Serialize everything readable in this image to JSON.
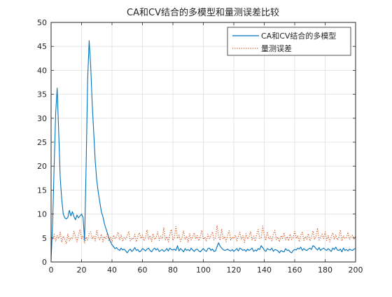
{
  "chart_data": {
    "type": "line",
    "title": "CA和CV结合的多模型和量测误差比较",
    "xlabel": "",
    "ylabel": "",
    "xlim": [
      0,
      200
    ],
    "ylim": [
      0,
      50
    ],
    "x_ticks": [
      0,
      20,
      40,
      60,
      80,
      100,
      120,
      140,
      160,
      180,
      200
    ],
    "y_ticks": [
      0,
      5,
      10,
      15,
      20,
      25,
      30,
      35,
      40,
      45,
      50
    ],
    "grid": true,
    "legend_position": "top-right",
    "series": [
      {
        "name": "CA和CV结合的多模型",
        "color": "#0072BD",
        "style": "solid",
        "x": [
          0,
          1,
          2,
          3,
          4,
          5,
          6,
          7,
          8,
          9,
          10,
          11,
          12,
          13,
          14,
          15,
          16,
          17,
          18,
          19,
          20,
          21,
          22,
          23,
          24,
          25,
          26,
          27,
          28,
          29,
          30,
          31,
          32,
          33,
          34,
          35,
          36,
          37,
          38,
          39,
          40,
          41,
          42,
          43,
          44,
          45,
          46,
          47,
          48,
          49,
          50,
          51,
          52,
          53,
          54,
          55,
          56,
          57,
          58,
          59,
          60,
          61,
          62,
          63,
          64,
          65,
          66,
          67,
          68,
          69,
          70,
          71,
          72,
          73,
          74,
          75,
          76,
          77,
          78,
          79,
          80,
          81,
          82,
          83,
          84,
          85,
          86,
          87,
          88,
          89,
          90,
          91,
          92,
          93,
          94,
          95,
          96,
          97,
          98,
          99,
          100,
          101,
          102,
          103,
          104,
          105,
          106,
          107,
          108,
          109,
          110,
          111,
          112,
          113,
          114,
          115,
          116,
          117,
          118,
          119,
          120,
          121,
          122,
          123,
          124,
          125,
          126,
          127,
          128,
          129,
          130,
          131,
          132,
          133,
          134,
          135,
          136,
          137,
          138,
          139,
          140,
          141,
          142,
          143,
          144,
          145,
          146,
          147,
          148,
          149,
          150,
          151,
          152,
          153,
          154,
          155,
          156,
          157,
          158,
          159,
          160,
          161,
          162,
          163,
          164,
          165,
          166,
          167,
          168,
          169,
          170,
          171,
          172,
          173,
          174,
          175,
          176,
          177,
          178,
          179,
          180,
          181,
          182,
          183,
          184,
          185,
          186,
          187,
          188,
          189,
          190,
          191,
          192,
          193,
          194,
          195,
          196,
          197,
          198,
          199,
          200
        ],
        "values": [
          0.5,
          8,
          20,
          31,
          36.3,
          27,
          17.5,
          13,
          10,
          9.2,
          9,
          9.3,
          10.8,
          9.6,
          10.5,
          9.5,
          8.8,
          9.8,
          9.2,
          9.6,
          10,
          9.3,
          4.5,
          20,
          38,
          46.2,
          41,
          33,
          27,
          21,
          17,
          14.5,
          12.5,
          10.5,
          9.5,
          8,
          7,
          6,
          5,
          4.2,
          3.6,
          3.2,
          2.8,
          3,
          2.6,
          2.4,
          2.9,
          2.5,
          2.7,
          2.3,
          1.9,
          2.4,
          2.7,
          2.2,
          2.5,
          3,
          2.4,
          2.6,
          2.1,
          2.3,
          2.8,
          2.6,
          2.3,
          2.7,
          2.9,
          2.4,
          2.1,
          2.6,
          2.9,
          2.5,
          2.8,
          2.2,
          2.4,
          2.6,
          2.2,
          2.4,
          2.8,
          2.3,
          2.9,
          2.6,
          2.5,
          2.7,
          2.4,
          3.4,
          2.3,
          2.8,
          2.5,
          2.1,
          2.8,
          2.4,
          2.6,
          2.3,
          2.9,
          2.5,
          2.2,
          2.6,
          2.7,
          2.3,
          2.1,
          2.5,
          2.8,
          2.4,
          2.2,
          2.8,
          2.9,
          2.4,
          2.7,
          2.2,
          2.3,
          3.2,
          4,
          3.3,
          2.9,
          2.6,
          2.4,
          2.5,
          2.7,
          2.4,
          2.3,
          2.6,
          2.2,
          2.5,
          2.8,
          2.3,
          2.9,
          2.7,
          2.4,
          2.6,
          2.2,
          2.7,
          2.4,
          2.6,
          2.9,
          2.2,
          2.5,
          2.3,
          2.8,
          2.6,
          3.4,
          3,
          2.5,
          2.2,
          2.8,
          2.6,
          2.5,
          2.9,
          2.2,
          2.6,
          2.5,
          2.3,
          1.9,
          2.4,
          2.2,
          2.1,
          2.8,
          2.4,
          2.5,
          2.1,
          1.9,
          2.4,
          2.6,
          2.5,
          2.9,
          2.7,
          3.1,
          2.4,
          2.8,
          2.5,
          2.4,
          2.7,
          2.9,
          2.6,
          3.4,
          3.2,
          2.8,
          2.5,
          3,
          2.4,
          2.7,
          2.9,
          2.6,
          2.4,
          2.8,
          2.5,
          2.2,
          2.9,
          2.6,
          3.1,
          2.5,
          2.4,
          2.7,
          2.1,
          2.9,
          2.4,
          2.6,
          2.3,
          2.7,
          2.5,
          2.4,
          2.7,
          2.8
        ]
      },
      {
        "name": "量测误差",
        "color": "#D95319",
        "style": "dotted",
        "x": [
          0,
          1,
          2,
          3,
          4,
          5,
          6,
          7,
          8,
          9,
          10,
          11,
          12,
          13,
          14,
          15,
          16,
          17,
          18,
          19,
          20,
          21,
          22,
          23,
          24,
          25,
          26,
          27,
          28,
          29,
          30,
          31,
          32,
          33,
          34,
          35,
          36,
          37,
          38,
          39,
          40,
          41,
          42,
          43,
          44,
          45,
          46,
          47,
          48,
          49,
          50,
          51,
          52,
          53,
          54,
          55,
          56,
          57,
          58,
          59,
          60,
          61,
          62,
          63,
          64,
          65,
          66,
          67,
          68,
          69,
          70,
          71,
          72,
          73,
          74,
          75,
          76,
          77,
          78,
          79,
          80,
          81,
          82,
          83,
          84,
          85,
          86,
          87,
          88,
          89,
          90,
          91,
          92,
          93,
          94,
          95,
          96,
          97,
          98,
          99,
          100,
          101,
          102,
          103,
          104,
          105,
          106,
          107,
          108,
          109,
          110,
          111,
          112,
          113,
          114,
          115,
          116,
          117,
          118,
          119,
          120,
          121,
          122,
          123,
          124,
          125,
          126,
          127,
          128,
          129,
          130,
          131,
          132,
          133,
          134,
          135,
          136,
          137,
          138,
          139,
          140,
          141,
          142,
          143,
          144,
          145,
          146,
          147,
          148,
          149,
          150,
          151,
          152,
          153,
          154,
          155,
          156,
          157,
          158,
          159,
          160,
          161,
          162,
          163,
          164,
          165,
          166,
          167,
          168,
          169,
          170,
          171,
          172,
          173,
          174,
          175,
          176,
          177,
          178,
          179,
          180,
          181,
          182,
          183,
          184,
          185,
          186,
          187,
          188,
          189,
          190,
          191,
          192,
          193,
          194,
          195,
          196,
          197,
          198,
          199,
          200
        ],
        "values": [
          5.2,
          4.6,
          5.8,
          4.3,
          5.5,
          4.9,
          6.2,
          4.1,
          5.4,
          4.7,
          3.8,
          5.9,
          4.4,
          5.1,
          4.8,
          6.4,
          5.3,
          4.2,
          5.6,
          6.8,
          4.9,
          5.5,
          3.9,
          5.2,
          4.6,
          5.9,
          6.3,
          4.8,
          5.4,
          4.4,
          6.6,
          5.1,
          4.7,
          5.8,
          4.2,
          5.3,
          4.8,
          6.1,
          4.5,
          5.2,
          4.1,
          5.6,
          4.9,
          5.3,
          6.2,
          4.6,
          5.7,
          4.3,
          5.1,
          4.8,
          5.5,
          6.4,
          4.4,
          5,
          4.7,
          5.8,
          4.2,
          5.3,
          6.1,
          4.9,
          5.6,
          4.4,
          5.2,
          6.7,
          4.8,
          5.5,
          4.3,
          5.9,
          4.7,
          5.1,
          6.3,
          4.5,
          5.4,
          4.9,
          7.2,
          4.6,
          5.3,
          4.2,
          5.8,
          6.8,
          4.5,
          5.2,
          7.4,
          4.9,
          5.6,
          4.3,
          5.1,
          6.5,
          4.7,
          5.4,
          4.1,
          5.9,
          4.6,
          5.2,
          6.1,
          4.8,
          5.5,
          4.4,
          5.3,
          6.6,
          4.7,
          5.2,
          4.3,
          5.8,
          4.9,
          5.5,
          6.3,
          4.6,
          5.1,
          7.6,
          5.4,
          4.5,
          6.9,
          4.8,
          5.3,
          4.2,
          5.7,
          6.5,
          4.6,
          5.2,
          4.9,
          5.6,
          4.4,
          5.3,
          6.2,
          4.7,
          5.5,
          4.1,
          5.9,
          4.8,
          5.2,
          6.4,
          4.6,
          5.4,
          4.3,
          5.7,
          6.8,
          4.9,
          5.1,
          7.5,
          5.6,
          4.5,
          6.3,
          4.8,
          5.3,
          4.4,
          5.9,
          6.6,
          4.7,
          5.2,
          4.2,
          5.5,
          4.9,
          6.1,
          4.6,
          5.3,
          4.4,
          5.8,
          4.7,
          5.1,
          6.4,
          4.9,
          5.5,
          4.2,
          5.6,
          6.2,
          4.5,
          5.3,
          4.8,
          5.9,
          4.4,
          5.1,
          6.5,
          4.7,
          5.4,
          7.1,
          4.6,
          5.2,
          5.8,
          4.9,
          6.3,
          4.5,
          5.5,
          4.2,
          5.3,
          6.1,
          4.8,
          5.7,
          4.6,
          5.2,
          6.7,
          4.4,
          5.5,
          4.9,
          5.1,
          6.2,
          4.7,
          5.3,
          5.6,
          4.8,
          5.4
        ]
      }
    ]
  }
}
